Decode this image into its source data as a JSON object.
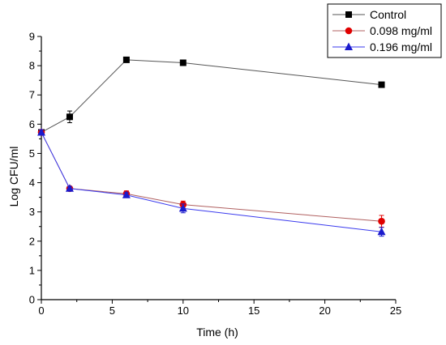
{
  "chart_data": {
    "type": "line",
    "title": "",
    "xlabel": "Time (h)",
    "ylabel": "Log CFU/ml",
    "xlim": [
      0,
      25
    ],
    "ylim": [
      0,
      9
    ],
    "x_ticks": [
      0,
      5,
      10,
      15,
      20,
      25
    ],
    "y_ticks": [
      0,
      1,
      2,
      3,
      4,
      5,
      6,
      7,
      8,
      9
    ],
    "grid": false,
    "legend_position": "top-right",
    "series": [
      {
        "name": "Control",
        "marker": "square",
        "color": "#000000",
        "line_color": "#555555",
        "x": [
          0,
          2,
          6,
          10,
          24
        ],
        "y": [
          5.72,
          6.25,
          8.2,
          8.1,
          7.35
        ],
        "error": [
          0.08,
          0.2,
          0.05,
          0.05,
          0.06
        ]
      },
      {
        "name": "0.098 mg/ml",
        "marker": "circle",
        "color": "#e00000",
        "line_color": "#b06060",
        "x": [
          0,
          2,
          6,
          10,
          24
        ],
        "y": [
          5.72,
          3.8,
          3.62,
          3.25,
          2.68
        ],
        "error": [
          0.08,
          0.07,
          0.1,
          0.12,
          0.2
        ]
      },
      {
        "name": "0.196 mg/ml",
        "marker": "triangle",
        "color": "#1a1acc",
        "line_color": "#3a3aee",
        "x": [
          0,
          2,
          6,
          10,
          24
        ],
        "y": [
          5.72,
          3.8,
          3.58,
          3.12,
          2.32
        ],
        "error": [
          0.08,
          0.07,
          0.08,
          0.15,
          0.15
        ]
      }
    ]
  }
}
